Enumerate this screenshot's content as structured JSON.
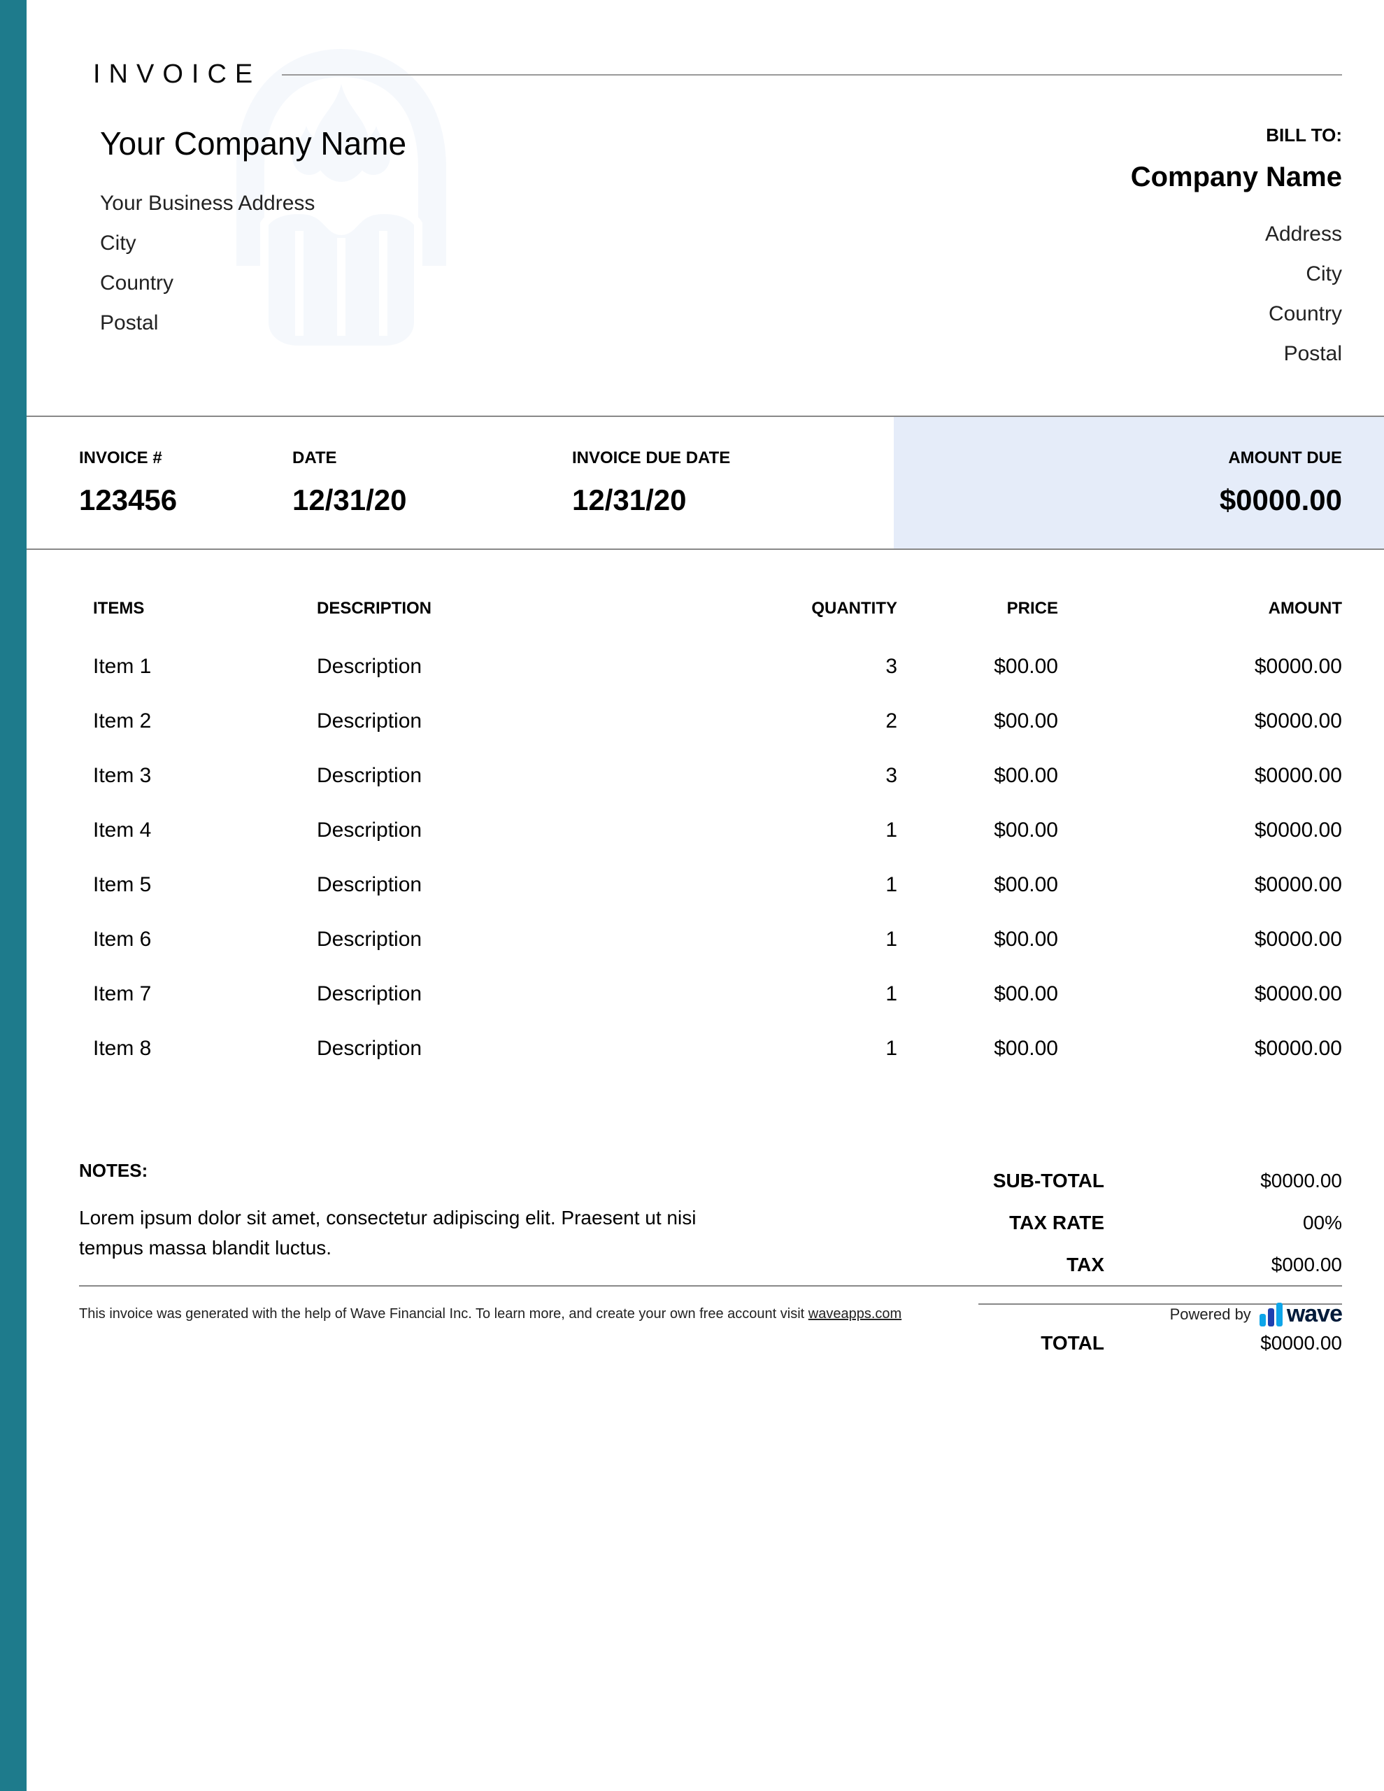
{
  "colors": {
    "sidebar": "#1e7b8c",
    "amount_due_bg": "#e5ecf9",
    "rule": "#888888",
    "watermark": "#c9dbf3",
    "text": "#000000"
  },
  "header": {
    "title": "INVOICE"
  },
  "from": {
    "company": "Your Company Name",
    "address": "Your Business Address",
    "city": "City",
    "country": "Country",
    "postal": "Postal"
  },
  "bill_to": {
    "label": "BILL TO:",
    "company": "Company Name",
    "address": "Address",
    "city": "City",
    "country": "Country",
    "postal": "Postal"
  },
  "meta": {
    "invoice_label": "INVOICE #",
    "invoice_value": "123456",
    "date_label": "DATE",
    "date_value": "12/31/20",
    "due_label": "INVOICE DUE DATE",
    "due_value": "12/31/20",
    "amount_due_label": "AMOUNT DUE",
    "amount_due_value": "$0000.00"
  },
  "columns": {
    "items": "ITEMS",
    "description": "DESCRIPTION",
    "quantity": "QUANTITY",
    "price": "PRICE",
    "amount": "AMOUNT"
  },
  "rows": [
    {
      "item": "Item 1",
      "description": "Description",
      "quantity": "3",
      "price": "$00.00",
      "amount": "$0000.00"
    },
    {
      "item": "Item 2",
      "description": "Description",
      "quantity": "2",
      "price": "$00.00",
      "amount": "$0000.00"
    },
    {
      "item": "Item 3",
      "description": "Description",
      "quantity": "3",
      "price": "$00.00",
      "amount": "$0000.00"
    },
    {
      "item": "Item 4",
      "description": "Description",
      "quantity": "1",
      "price": "$00.00",
      "amount": "$0000.00"
    },
    {
      "item": "Item 5",
      "description": "Description",
      "quantity": "1",
      "price": "$00.00",
      "amount": "$0000.00"
    },
    {
      "item": "Item 6",
      "description": "Description",
      "quantity": "1",
      "price": "$00.00",
      "amount": "$0000.00"
    },
    {
      "item": "Item 7",
      "description": "Description",
      "quantity": "1",
      "price": "$00.00",
      "amount": "$0000.00"
    },
    {
      "item": "Item 8",
      "description": "Description",
      "quantity": "1",
      "price": "$00.00",
      "amount": "$0000.00"
    }
  ],
  "notes": {
    "label": "NOTES:",
    "text": "Lorem ipsum dolor sit amet, consectetur adipiscing elit. Praesent ut nisi tempus massa blandit luctus."
  },
  "totals": {
    "subtotal_label": "SUB-TOTAL",
    "subtotal_value": "$0000.00",
    "taxrate_label": "TAX RATE",
    "taxrate_value": "00%",
    "tax_label": "TAX",
    "tax_value": "$000.00",
    "total_label": "TOTAL",
    "total_value": "$0000.00"
  },
  "footer": {
    "text_prefix": "This invoice was generated with the help of Wave Financial Inc. To learn more, and create your own free account visit ",
    "link_text": "waveapps.com",
    "powered_by": "Powered by",
    "brand": "wave"
  }
}
